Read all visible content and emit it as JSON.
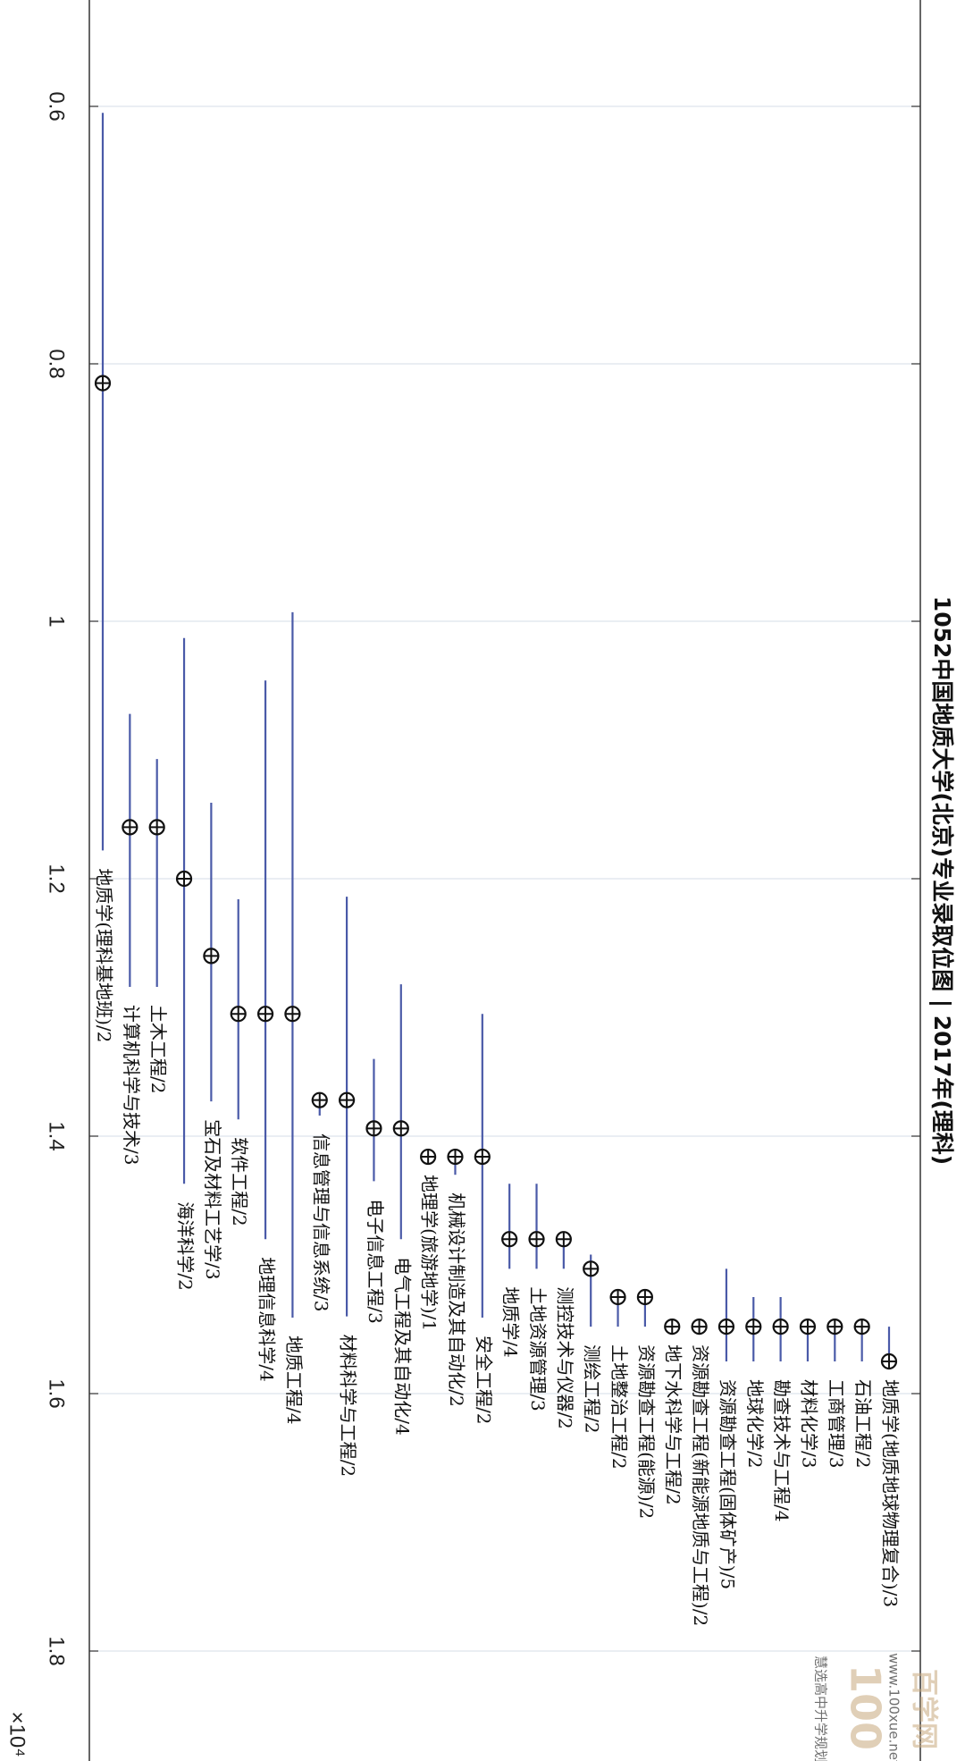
{
  "chart_data": {
    "type": "scatter",
    "title": "1052中国地质大学(北京)专业录取位图 | 2017年(理科)",
    "ylabel_multiplier": "×10⁴",
    "ylim": [
      0.5,
      1.85
    ],
    "yticks": [
      0.6,
      0.8,
      1,
      1.2,
      1.4,
      1.6,
      1.8
    ],
    "yticklabels": [
      "0.6",
      "0.8",
      "1",
      "1.2",
      "1.4",
      "1.6",
      "1.8"
    ],
    "grid": true,
    "points": [
      {
        "major": "地质学(理科基地班)/2",
        "value": 0.815,
        "low": 0.605,
        "high": 1.178
      },
      {
        "major": "计算机科学与技术/3",
        "value": 1.16,
        "low": 1.072,
        "high": 1.284
      },
      {
        "major": "土木工程/2",
        "value": 1.16,
        "low": 1.107,
        "high": 1.284
      },
      {
        "major": "海洋科学/2",
        "value": 1.2,
        "low": 1.013,
        "high": 1.437
      },
      {
        "major": "宝石及材料工艺学/3",
        "value": 1.26,
        "low": 1.141,
        "high": 1.373
      },
      {
        "major": "软件工程/2",
        "value": 1.305,
        "low": 1.216,
        "high": 1.387
      },
      {
        "major": "地理信息科学/4",
        "value": 1.305,
        "low": 1.046,
        "high": 1.48
      },
      {
        "major": "地质工程/4",
        "value": 1.305,
        "low": 0.993,
        "high": 1.541
      },
      {
        "major": "信息管理与信息系统/3",
        "value": 1.372,
        "low": 1.372,
        "high": 1.384
      },
      {
        "major": "材料科学与工程/2",
        "value": 1.372,
        "low": 1.214,
        "high": 1.54
      },
      {
        "major": "电子信息工程/3",
        "value": 1.394,
        "low": 1.34,
        "high": 1.435
      },
      {
        "major": "电气工程及其自动化/4",
        "value": 1.394,
        "low": 1.282,
        "high": 1.48
      },
      {
        "major": "地理学(旅游地学)/1",
        "value": 1.416,
        "low": 1.416,
        "high": 1.416
      },
      {
        "major": "机械设计制造及其自动化/2",
        "value": 1.416,
        "low": 1.416,
        "high": 1.43
      },
      {
        "major": "安全工程/2",
        "value": 1.416,
        "low": 1.305,
        "high": 1.541
      },
      {
        "major": "地质学/4",
        "value": 1.48,
        "low": 1.437,
        "high": 1.503
      },
      {
        "major": "土地资源管理/3",
        "value": 1.48,
        "low": 1.437,
        "high": 1.503
      },
      {
        "major": "测控技术与仪器/2",
        "value": 1.48,
        "low": 1.48,
        "high": 1.503
      },
      {
        "major": "测绘工程/2",
        "value": 1.503,
        "low": 1.492,
        "high": 1.548
      },
      {
        "major": "土地整治工程/2",
        "value": 1.525,
        "low": 1.525,
        "high": 1.548
      },
      {
        "major": "资源勘查工程(能源)/2",
        "value": 1.525,
        "low": 1.525,
        "high": 1.548
      },
      {
        "major": "地下水科学与工程/2",
        "value": 1.548,
        "low": 1.548,
        "high": 1.548
      },
      {
        "major": "资源勘查工程(新能源地质与工程)/2",
        "value": 1.548,
        "low": 1.548,
        "high": 1.548
      },
      {
        "major": "资源勘查工程(固体矿产)/5",
        "value": 1.548,
        "low": 1.503,
        "high": 1.575
      },
      {
        "major": "地球化学/2",
        "value": 1.548,
        "low": 1.525,
        "high": 1.575
      },
      {
        "major": "勘查技术与工程/4",
        "value": 1.548,
        "low": 1.525,
        "high": 1.575
      },
      {
        "major": "材料化学/3",
        "value": 1.548,
        "low": 1.548,
        "high": 1.575
      },
      {
        "major": "工商管理/3",
        "value": 1.548,
        "low": 1.548,
        "high": 1.575
      },
      {
        "major": "石油工程/2",
        "value": 1.548,
        "low": 1.548,
        "high": 1.575
      },
      {
        "major": "地质学(地质地球物理复合)/3",
        "value": 1.575,
        "low": 1.548,
        "high": 1.575
      }
    ]
  },
  "colors": {
    "errorbar": "#4a5aa8",
    "marker": "#111111",
    "grid": "#dde3ec",
    "axis": "#333333"
  },
  "watermark": {
    "logo_number": "100",
    "logo_text": "百学网",
    "wechat_text": "慧选高中升学规划",
    "url": "www.100xue.net"
  }
}
